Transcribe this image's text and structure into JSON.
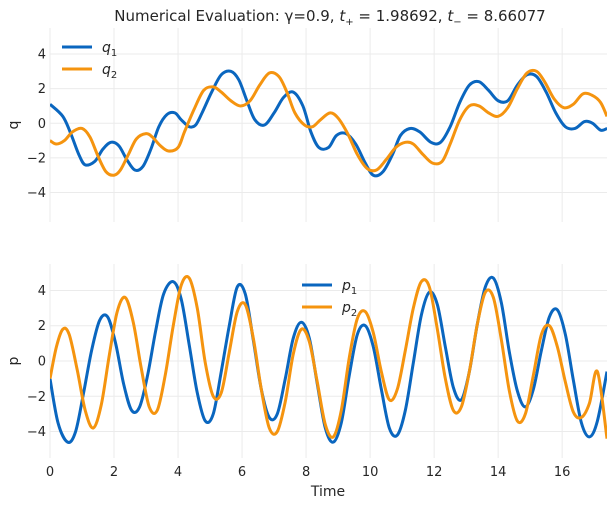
{
  "title": {
    "prefix": "Numerical Evaluation: γ=0.9, ",
    "tplus_sym": "t",
    "tplus_sub": "+",
    "tplus_val": " = 1.98692, ",
    "tminus_sym": "t",
    "tminus_sub": "−",
    "tminus_val": " = 8.66077"
  },
  "xlabel": "Time",
  "colors": {
    "blue": "#0a66bf",
    "orange": "#f5940f",
    "grid": "#ebebeb"
  },
  "chart_data": [
    {
      "type": "line",
      "ylabel": "q",
      "xlim": [
        0,
        17.4
      ],
      "ylim": [
        -5.7,
        5.5
      ],
      "xticks": [
        0,
        2,
        4,
        6,
        8,
        10,
        12,
        14,
        16
      ],
      "xticklabels": [],
      "yticks": [
        -4,
        -2,
        0,
        2,
        4
      ],
      "yticklabels": [
        "−4",
        "−2",
        "0",
        "2",
        "4"
      ],
      "legend_position": "top-left",
      "series": [
        {
          "name": "q",
          "sub": "1",
          "color": "#0a66bf",
          "x": [
            0,
            0.4,
            0.65,
            0.9,
            1.1,
            1.4,
            1.65,
            1.9,
            2.15,
            2.4,
            2.65,
            2.9,
            3.15,
            3.4,
            3.65,
            3.9,
            4.1,
            4.35,
            4.55,
            4.75,
            5.05,
            5.35,
            5.65,
            5.9,
            6.15,
            6.4,
            6.7,
            7.0,
            7.3,
            7.6,
            7.9,
            8.15,
            8.4,
            8.7,
            8.95,
            9.25,
            9.55,
            9.85,
            10.1,
            10.4,
            10.7,
            10.95,
            11.25,
            11.55,
            11.9,
            12.2,
            12.5,
            12.8,
            13.1,
            13.4,
            13.7,
            14.0,
            14.3,
            14.6,
            14.9,
            15.2,
            15.5,
            15.8,
            16.1,
            16.4,
            16.7,
            16.95,
            17.2,
            17.4
          ],
          "y": [
            1.1,
            0.4,
            -0.6,
            -1.8,
            -2.4,
            -2.2,
            -1.5,
            -1.1,
            -1.3,
            -2.1,
            -2.7,
            -2.5,
            -1.5,
            -0.2,
            0.5,
            0.6,
            0.2,
            -0.2,
            -0.1,
            0.6,
            1.8,
            2.8,
            3.0,
            2.5,
            1.3,
            0.2,
            -0.1,
            0.6,
            1.5,
            1.8,
            1.0,
            -0.5,
            -1.4,
            -1.4,
            -0.7,
            -0.6,
            -1.2,
            -2.3,
            -3.0,
            -2.8,
            -1.8,
            -0.7,
            -0.3,
            -0.5,
            -1.1,
            -1.1,
            -0.2,
            1.2,
            2.2,
            2.4,
            1.9,
            1.3,
            1.3,
            2.2,
            2.8,
            2.7,
            1.8,
            0.6,
            -0.2,
            -0.3,
            0.1,
            0.0,
            -0.4,
            -0.3
          ]
        },
        {
          "name": "q",
          "sub": "2",
          "color": "#f5940f",
          "x": [
            0,
            0.2,
            0.45,
            0.7,
            1.0,
            1.25,
            1.5,
            1.75,
            2.0,
            2.2,
            2.45,
            2.7,
            3.0,
            3.2,
            3.45,
            3.7,
            4.0,
            4.2,
            4.5,
            4.8,
            5.1,
            5.35,
            5.65,
            5.95,
            6.25,
            6.55,
            6.85,
            7.15,
            7.4,
            7.65,
            7.95,
            8.2,
            8.45,
            8.75,
            9.0,
            9.3,
            9.6,
            9.9,
            10.2,
            10.5,
            10.8,
            11.1,
            11.35,
            11.65,
            11.95,
            12.25,
            12.5,
            12.8,
            13.1,
            13.4,
            13.7,
            14.0,
            14.3,
            14.6,
            14.9,
            15.2,
            15.45,
            15.75,
            16.05,
            16.35,
            16.65,
            16.95,
            17.2,
            17.4
          ],
          "y": [
            -1.0,
            -1.2,
            -1.0,
            -0.5,
            -0.3,
            -0.8,
            -1.9,
            -2.8,
            -3.0,
            -2.7,
            -1.8,
            -0.9,
            -0.6,
            -0.8,
            -1.3,
            -1.6,
            -1.4,
            -0.5,
            0.8,
            1.9,
            2.1,
            1.8,
            1.3,
            1.0,
            1.3,
            2.2,
            2.9,
            2.7,
            1.8,
            0.6,
            -0.1,
            -0.2,
            0.2,
            0.6,
            0.3,
            -0.6,
            -1.8,
            -2.6,
            -2.7,
            -2.1,
            -1.4,
            -1.1,
            -1.2,
            -1.8,
            -2.3,
            -2.2,
            -1.2,
            0.2,
            1.0,
            1.0,
            0.6,
            0.4,
            0.9,
            2.0,
            2.9,
            3.0,
            2.4,
            1.4,
            0.9,
            1.1,
            1.7,
            1.6,
            1.2,
            0.4
          ]
        }
      ]
    },
    {
      "type": "line",
      "ylabel": "p",
      "xlim": [
        0,
        17.4
      ],
      "ylim": [
        -5.5,
        5.5
      ],
      "xticks": [
        0,
        2,
        4,
        6,
        8,
        10,
        12,
        14,
        16
      ],
      "xticklabels": [
        "0",
        "2",
        "4",
        "6",
        "8",
        "10",
        "12",
        "14",
        "16"
      ],
      "yticks": [
        -4,
        -2,
        0,
        2,
        4
      ],
      "yticklabels": [
        "−4",
        "−2",
        "0",
        "2",
        "4"
      ],
      "legend_position": "top-center",
      "series": [
        {
          "name": "p",
          "sub": "1",
          "color": "#0a66bf",
          "x": [
            0,
            0.25,
            0.55,
            0.8,
            1.05,
            1.3,
            1.55,
            1.8,
            2.05,
            2.3,
            2.55,
            2.8,
            3.05,
            3.3,
            3.55,
            3.85,
            4.1,
            4.35,
            4.6,
            4.85,
            5.1,
            5.35,
            5.6,
            5.85,
            6.1,
            6.35,
            6.6,
            6.85,
            7.1,
            7.35,
            7.6,
            7.85,
            8.1,
            8.35,
            8.6,
            8.85,
            9.1,
            9.35,
            9.6,
            9.85,
            10.1,
            10.35,
            10.6,
            10.85,
            11.1,
            11.35,
            11.6,
            11.85,
            12.1,
            12.35,
            12.6,
            12.85,
            13.1,
            13.35,
            13.6,
            13.85,
            14.1,
            14.35,
            14.6,
            14.85,
            15.1,
            15.35,
            15.6,
            15.85,
            16.1,
            16.35,
            16.6,
            16.85,
            17.1,
            17.4
          ],
          "y": [
            -1.0,
            -3.5,
            -4.6,
            -4.0,
            -1.8,
            0.6,
            2.3,
            2.5,
            1.0,
            -1.3,
            -2.8,
            -2.6,
            -0.8,
            1.7,
            3.8,
            4.5,
            3.5,
            0.9,
            -1.8,
            -3.4,
            -3.0,
            -0.6,
            2.0,
            4.2,
            3.8,
            1.2,
            -1.6,
            -3.2,
            -3.0,
            -1.0,
            1.3,
            2.2,
            1.3,
            -1.3,
            -3.8,
            -4.6,
            -3.5,
            -0.8,
            1.5,
            2.0,
            0.8,
            -1.6,
            -3.8,
            -4.2,
            -2.8,
            -0.1,
            2.6,
            3.9,
            3.2,
            0.8,
            -1.5,
            -2.2,
            -0.6,
            2.1,
            4.2,
            4.7,
            3.3,
            0.5,
            -1.7,
            -2.6,
            -1.6,
            0.6,
            2.5,
            2.9,
            1.5,
            -1.1,
            -3.5,
            -4.3,
            -3.4,
            -0.6
          ]
        },
        {
          "name": "p",
          "sub": "2",
          "color": "#f5940f",
          "x": [
            0,
            0.2,
            0.4,
            0.6,
            0.85,
            1.1,
            1.35,
            1.6,
            1.85,
            2.1,
            2.35,
            2.6,
            2.85,
            3.1,
            3.35,
            3.6,
            3.85,
            4.1,
            4.35,
            4.6,
            4.85,
            5.1,
            5.35,
            5.6,
            5.85,
            6.1,
            6.35,
            6.6,
            6.85,
            7.1,
            7.35,
            7.6,
            7.85,
            8.1,
            8.35,
            8.6,
            8.85,
            9.1,
            9.35,
            9.6,
            9.85,
            10.1,
            10.35,
            10.6,
            10.85,
            11.1,
            11.35,
            11.6,
            11.85,
            12.1,
            12.35,
            12.6,
            12.85,
            13.1,
            13.35,
            13.6,
            13.85,
            14.1,
            14.35,
            14.6,
            14.85,
            15.1,
            15.35,
            15.6,
            15.85,
            16.1,
            16.35,
            16.6,
            16.85,
            17.1,
            17.4
          ],
          "y": [
            -1.0,
            0.8,
            1.8,
            1.5,
            -0.5,
            -2.8,
            -3.8,
            -2.5,
            0.3,
            2.8,
            3.6,
            2.2,
            -0.4,
            -2.6,
            -2.8,
            -0.8,
            2.0,
            4.3,
            4.7,
            3.0,
            -0.1,
            -2.0,
            -1.8,
            0.5,
            2.8,
            3.2,
            1.3,
            -1.6,
            -3.8,
            -4.0,
            -2.3,
            0.4,
            1.8,
            1.1,
            -1.2,
            -3.6,
            -4.3,
            -2.8,
            0.2,
            2.4,
            2.8,
            1.6,
            -0.6,
            -2.2,
            -1.6,
            0.6,
            3.0,
            4.5,
            4.2,
            1.8,
            -1.0,
            -2.8,
            -2.6,
            -0.6,
            2.1,
            3.9,
            3.6,
            1.2,
            -1.7,
            -3.4,
            -3.0,
            -0.8,
            1.5,
            2.0,
            0.8,
            -1.2,
            -2.9,
            -3.2,
            -2.4,
            -0.6,
            -4.4
          ]
        }
      ]
    }
  ]
}
